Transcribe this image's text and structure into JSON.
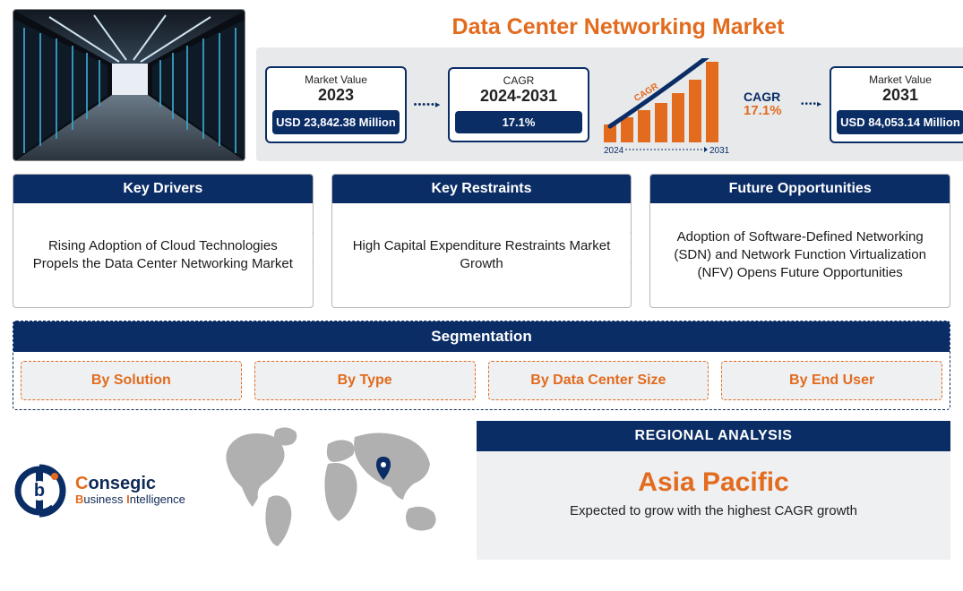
{
  "title": {
    "text": "Data Center Networking Market",
    "color": "#e26b1e",
    "fontsize": 25
  },
  "colors": {
    "navy": "#0b2d66",
    "orange": "#e26b1e",
    "band_bg": "#e7e9eb",
    "seg_bg": "#eef0f2",
    "border_gray": "#b7b7b7",
    "map_gray": "#b0b0b0",
    "text": "#1a1a1a"
  },
  "metrics": {
    "market_2023": {
      "label": "Market Value",
      "year": "2023",
      "value": "USD 23,842.38 Million"
    },
    "cagr": {
      "label": "CAGR",
      "period": "2024-2031",
      "value": "17.1%"
    },
    "growth": {
      "start_year": "2024",
      "end_year": "2031",
      "cagr_label": "CAGR",
      "cagr_pct": "17.1%",
      "bar_color": "#e26b1e",
      "arrow_color": "#0b2d66",
      "bars": [
        20,
        28,
        36,
        44,
        55,
        70,
        90
      ]
    },
    "market_2031": {
      "label": "Market Value",
      "year": "2031",
      "value": "USD 84,053.14 Million"
    }
  },
  "drivers": [
    {
      "header": "Key Drivers",
      "body": "Rising Adoption of Cloud Technologies Propels the Data Center Networking Market"
    },
    {
      "header": "Key Restraints",
      "body": "High Capital Expenditure Restraints Market Growth"
    },
    {
      "header": "Future Opportunities",
      "body": "Adoption of Software-Defined Networking (SDN) and Network Function Virtualization (NFV) Opens Future Opportunities"
    }
  ],
  "segmentation": {
    "header": "Segmentation",
    "items": [
      "By Solution",
      "By Type",
      "By Data Center Size",
      "By End User"
    ]
  },
  "logo": {
    "line1_highlight": "C",
    "line1_rest": "onsegic",
    "line2_highlight": "B",
    "line2_rest1": "usiness ",
    "line2_highlight2": "I",
    "line2_rest2": "ntelligence"
  },
  "regional": {
    "header": "REGIONAL ANALYSIS",
    "region": "Asia Pacific",
    "sub": "Expected to grow with the highest CAGR growth",
    "marker_color": "#0b2d66"
  },
  "hero": {
    "type": "data-center-corridor-photo",
    "dominant_colors": [
      "#0a0e14",
      "#1e3250",
      "#3aa0c7",
      "#d9e6ef"
    ]
  }
}
